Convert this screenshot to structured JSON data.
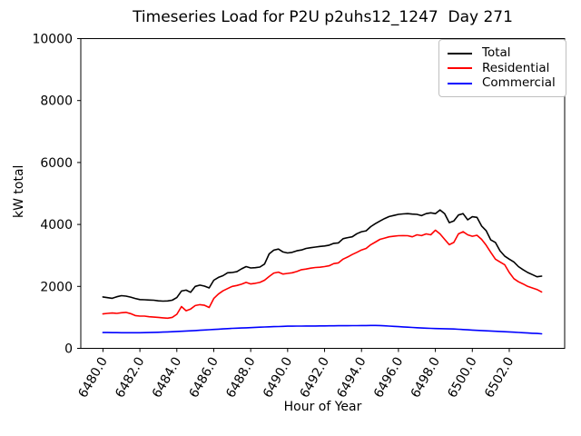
{
  "chart_data": {
    "type": "line",
    "title": "Timeseries Load for P2U p2uhs12_1247  Day 271",
    "xlabel": "Hour of Year",
    "ylabel": "kW total",
    "xlim": [
      6478.8,
      6505.0
    ],
    "ylim": [
      0,
      10000
    ],
    "grid": false,
    "legend_position": "upper right",
    "xticks": [
      6480,
      6482,
      6484,
      6486,
      6488,
      6490,
      6492,
      6494,
      6496,
      6498,
      6500,
      6502
    ],
    "xtick_labels": [
      "6480.0",
      "6482.0",
      "6484.0",
      "6486.0",
      "6488.0",
      "6490.0",
      "6492.0",
      "6494.0",
      "6496.0",
      "6498.0",
      "6500.0",
      "6502.0"
    ],
    "yticks": [
      0,
      2000,
      4000,
      6000,
      8000,
      10000
    ],
    "ytick_labels": [
      "0",
      "2000",
      "4000",
      "6000",
      "8000",
      "10000"
    ],
    "x": [
      6480.0,
      6480.25,
      6480.5,
      6480.75,
      6481.0,
      6481.25,
      6481.5,
      6481.75,
      6482.0,
      6482.25,
      6482.5,
      6482.75,
      6483.0,
      6483.25,
      6483.5,
      6483.75,
      6484.0,
      6484.25,
      6484.5,
      6484.75,
      6485.0,
      6485.25,
      6485.5,
      6485.75,
      6486.0,
      6486.25,
      6486.5,
      6486.75,
      6487.0,
      6487.25,
      6487.5,
      6487.75,
      6488.0,
      6488.25,
      6488.5,
      6488.75,
      6489.0,
      6489.25,
      6489.5,
      6489.75,
      6490.0,
      6490.25,
      6490.5,
      6490.75,
      6491.0,
      6491.25,
      6491.5,
      6491.75,
      6492.0,
      6492.25,
      6492.5,
      6492.75,
      6493.0,
      6493.25,
      6493.5,
      6493.75,
      6494.0,
      6494.25,
      6494.5,
      6494.75,
      6495.0,
      6495.25,
      6495.5,
      6495.75,
      6496.0,
      6496.25,
      6496.5,
      6496.75,
      6497.0,
      6497.25,
      6497.5,
      6497.75,
      6498.0,
      6498.25,
      6498.5,
      6498.75,
      6499.0,
      6499.25,
      6499.5,
      6499.75,
      6500.0,
      6500.25,
      6500.5,
      6500.75,
      6501.0,
      6501.25,
      6501.5,
      6501.75,
      6502.0,
      6502.25,
      6502.5,
      6502.75,
      6503.0,
      6503.25,
      6503.5,
      6503.75
    ],
    "series": [
      {
        "name": "Total",
        "color": "#000000",
        "values": [
          1660,
          1635,
          1615,
          1665,
          1700,
          1685,
          1655,
          1610,
          1575,
          1570,
          1560,
          1555,
          1535,
          1525,
          1530,
          1555,
          1640,
          1850,
          1880,
          1810,
          2000,
          2040,
          2010,
          1950,
          2200,
          2290,
          2345,
          2440,
          2450,
          2475,
          2565,
          2640,
          2595,
          2605,
          2625,
          2720,
          3050,
          3170,
          3205,
          3110,
          3080,
          3100,
          3150,
          3175,
          3225,
          3250,
          3270,
          3290,
          3305,
          3330,
          3390,
          3405,
          3540,
          3575,
          3600,
          3700,
          3765,
          3795,
          3930,
          4025,
          4110,
          4190,
          4255,
          4290,
          4325,
          4340,
          4350,
          4335,
          4325,
          4285,
          4350,
          4375,
          4350,
          4470,
          4350,
          4060,
          4110,
          4305,
          4350,
          4150,
          4250,
          4230,
          3950,
          3800,
          3500,
          3420,
          3150,
          2980,
          2880,
          2790,
          2640,
          2540,
          2450,
          2380,
          2310,
          2330
        ]
      },
      {
        "name": "Residential",
        "color": "#ff0000",
        "values": [
          1110,
          1130,
          1140,
          1130,
          1150,
          1160,
          1120,
          1060,
          1040,
          1040,
          1020,
          1010,
          1000,
          985,
          975,
          1000,
          1100,
          1350,
          1215,
          1270,
          1380,
          1410,
          1390,
          1320,
          1610,
          1755,
          1855,
          1930,
          2000,
          2030,
          2070,
          2130,
          2080,
          2100,
          2130,
          2200,
          2320,
          2430,
          2460,
          2400,
          2420,
          2440,
          2480,
          2540,
          2560,
          2590,
          2610,
          2620,
          2640,
          2665,
          2735,
          2760,
          2880,
          2950,
          3030,
          3100,
          3175,
          3225,
          3345,
          3430,
          3520,
          3560,
          3600,
          3620,
          3635,
          3640,
          3635,
          3600,
          3665,
          3640,
          3695,
          3665,
          3815,
          3695,
          3520,
          3345,
          3420,
          3695,
          3765,
          3665,
          3620,
          3650,
          3520,
          3330,
          3100,
          2880,
          2790,
          2700,
          2450,
          2250,
          2150,
          2080,
          2000,
          1950,
          1900,
          1820
        ]
      },
      {
        "name": "Commercial",
        "color": "#0000ff",
        "values": [
          510,
          509,
          508,
          506,
          505,
          504,
          504,
          504,
          505,
          507,
          510,
          515,
          520,
          526,
          532,
          538,
          545,
          552,
          560,
          567,
          575,
          583,
          592,
          601,
          610,
          619,
          628,
          636,
          645,
          651,
          658,
          664,
          670,
          676,
          683,
          689,
          695,
          700,
          705,
          710,
          715,
          716,
          718,
          719,
          720,
          721,
          722,
          723,
          725,
          726,
          728,
          729,
          730,
          731,
          733,
          734,
          735,
          737,
          740,
          738,
          735,
          727,
          718,
          709,
          700,
          691,
          683,
          674,
          665,
          658,
          652,
          646,
          640,
          636,
          632,
          628,
          625,
          617,
          608,
          599,
          590,
          582,
          575,
          567,
          560,
          552,
          545,
          537,
          530,
          521,
          512,
          504,
          495,
          488,
          480,
          470
        ]
      }
    ]
  }
}
